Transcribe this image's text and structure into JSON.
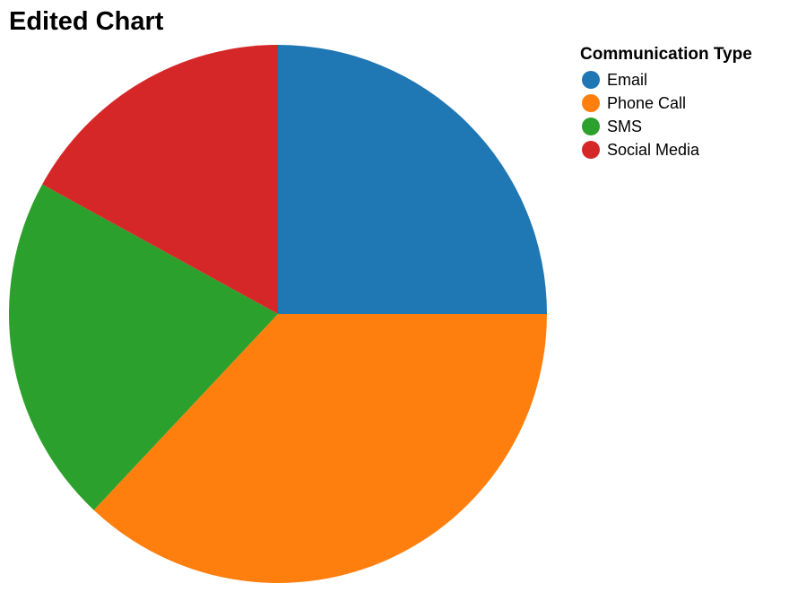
{
  "chart_data": {
    "type": "pie",
    "title": "Edited Chart",
    "legend_title": "Communication Type",
    "legend_position": "top-right",
    "categories": [
      "Email",
      "Phone Call",
      "SMS",
      "Social Media"
    ],
    "values": [
      25,
      37,
      21,
      17
    ],
    "colors": [
      "#1f77b4",
      "#ff7f0e",
      "#2ca02c",
      "#d62728"
    ]
  }
}
